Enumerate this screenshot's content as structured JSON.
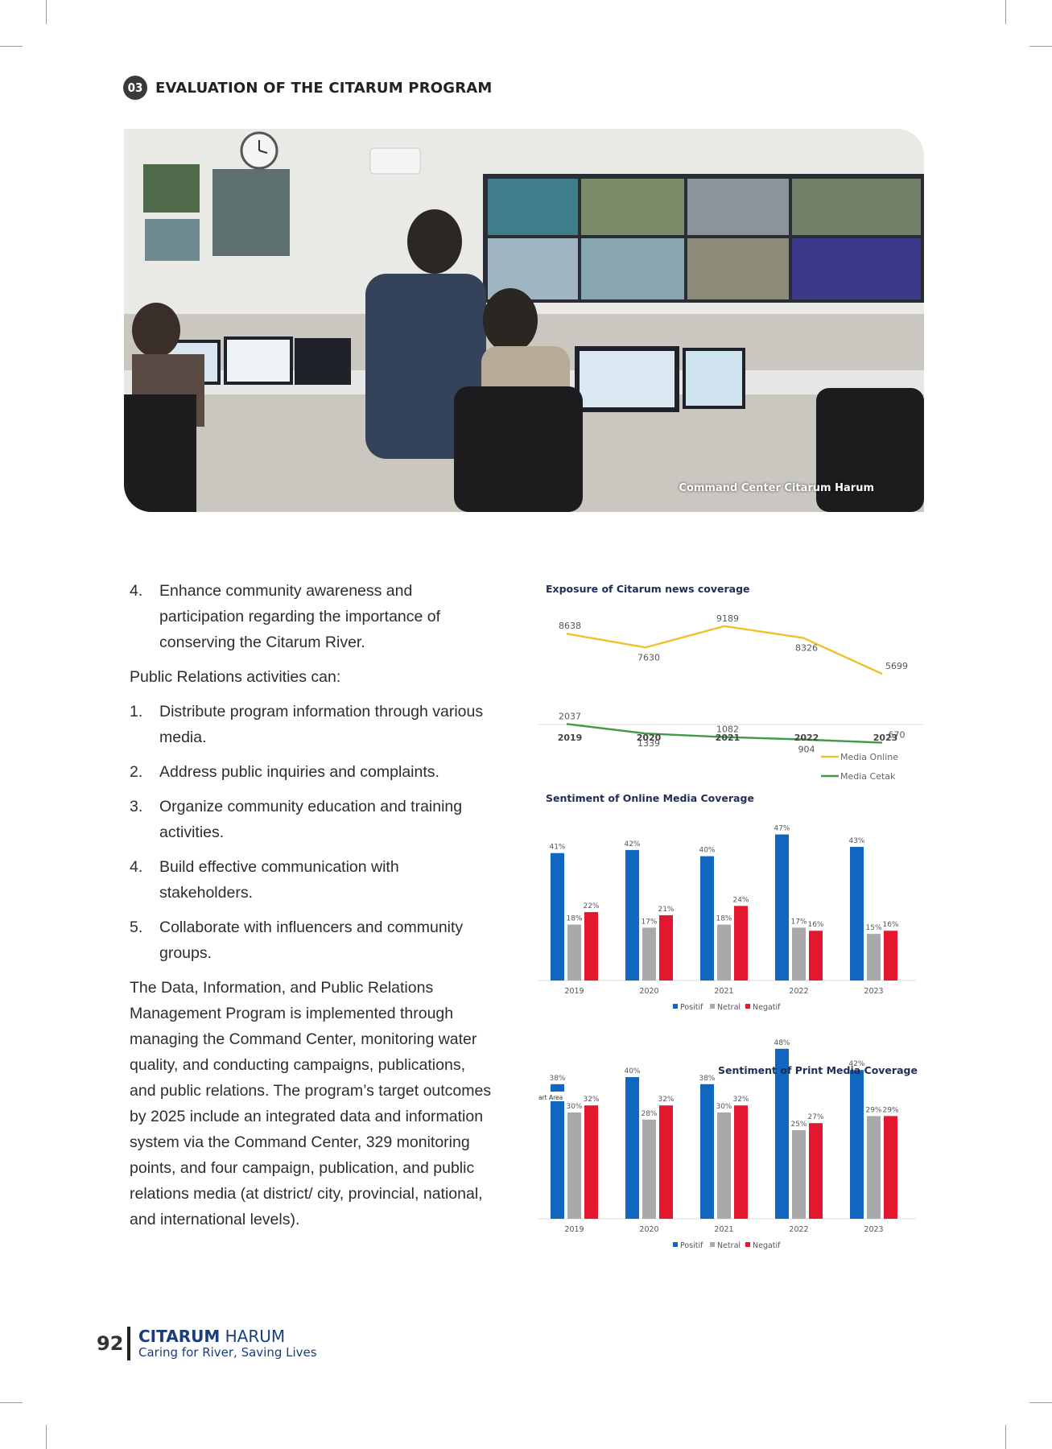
{
  "header": {
    "section_number": "03",
    "section_title": "EVALUATION OF THE CITARUM PROGRAM"
  },
  "photo": {
    "caption": "Command Center Citarum Harum"
  },
  "body": {
    "list1": [
      {
        "num": "4.",
        "text": "Enhance community awareness and participation regarding the importance of conserving the Citarum River."
      }
    ],
    "intro": "Public Relations activities can:",
    "list2": [
      {
        "num": "1.",
        "text": "Distribute program information through various media."
      },
      {
        "num": "2.",
        "text": "Address public inquiries and complaints."
      },
      {
        "num": "3.",
        "text": "Organize community education and training activities."
      },
      {
        "num": "4.",
        "text": "Build effective communication with stakeholders."
      },
      {
        "num": "5.",
        "text": "Collaborate with influencers and community groups."
      }
    ],
    "closing": "The Data, Information, and Public Relations Management Program is implemented through managing the Command Center, monitoring water quality, and conducting campaigns, publications, and public relations. The program’s target outcomes by 2025 include an integrated data and information system via the Command Center, 329 monitoring points, and four campaign, publication, and public relations media (at district/ city, provincial, national, and international levels)."
  },
  "chart_data": [
    {
      "type": "line",
      "title": "Exposure of Citarum news coverage",
      "x": [
        "2019",
        "2020",
        "2021",
        "2022",
        "2023"
      ],
      "series": [
        {
          "name": "Media Online",
          "color": "#f0c12c",
          "values": [
            8638,
            7630,
            9189,
            8326,
            5699
          ]
        },
        {
          "name": "Media Cetak",
          "color": "#3f9b45",
          "values": [
            2037,
            1339,
            1082,
            904,
            670
          ]
        }
      ],
      "legend": "bottom-right",
      "grid": false
    },
    {
      "type": "bar",
      "title": "Sentiment of Online Media Coverage",
      "categories": [
        "2019",
        "2020",
        "2021",
        "2022",
        "2023"
      ],
      "series": [
        {
          "name": "Positif",
          "color": "#1166c0",
          "values": [
            41,
            42,
            40,
            47,
            43
          ]
        },
        {
          "name": "Netral",
          "color": "#a9a9a9",
          "values": [
            18,
            17,
            18,
            17,
            15
          ]
        },
        {
          "name": "Negatif",
          "color": "#e3172d",
          "values": [
            22,
            21,
            24,
            16,
            16
          ]
        }
      ],
      "value_labels": [
        [
          "41%",
          "18%",
          "22%"
        ],
        [
          "42%",
          "17%",
          "21%"
        ],
        [
          "40%",
          "18%",
          "24%"
        ],
        [
          "47%",
          "17%",
          "16%"
        ],
        [
          "43%",
          "15%",
          "16%"
        ]
      ],
      "legend": "bottom"
    },
    {
      "type": "bar",
      "title": "Sentiment of Print Media Coverage",
      "categories": [
        "2019",
        "2020",
        "2021",
        "2022",
        "2023"
      ],
      "series": [
        {
          "name": "Positif",
          "color": "#1166c0",
          "values": [
            38,
            40,
            38,
            48,
            42
          ]
        },
        {
          "name": "Netral",
          "color": "#a9a9a9",
          "values": [
            30,
            28,
            30,
            25,
            29
          ]
        },
        {
          "name": "Negatif",
          "color": "#e3172d",
          "values": [
            32,
            32,
            32,
            27,
            29
          ]
        }
      ],
      "value_labels": [
        [
          "38%",
          "30%",
          "32%"
        ],
        [
          "40%",
          "28%",
          "32%"
        ],
        [
          "38%",
          "30%",
          "32%"
        ],
        [
          "48%",
          "25%",
          "27%"
        ],
        [
          "42%",
          "29%",
          "29%"
        ]
      ],
      "legend": "bottom",
      "artifact_label": "art Area"
    }
  ],
  "footer": {
    "page_number": "92",
    "brand_bold": "CITARUM",
    "brand_light": " HARUM",
    "tagline": "Caring for River, Saving Lives"
  }
}
